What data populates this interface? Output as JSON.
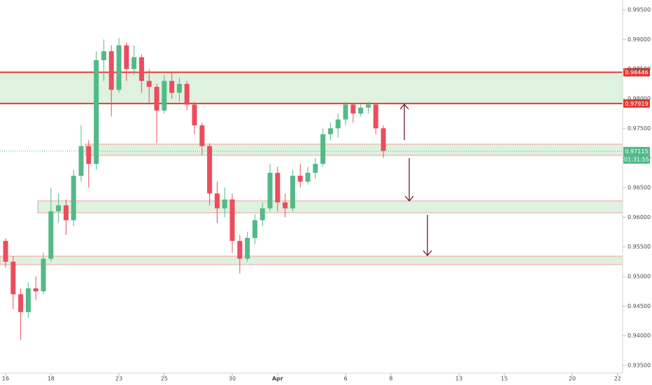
{
  "chart_data": {
    "type": "candlestick",
    "categories": [
      "16",
      null,
      null,
      null,
      null,
      null,
      "18",
      null,
      null,
      null,
      null,
      null,
      null,
      null,
      null,
      "23",
      null,
      null,
      null,
      null,
      null,
      "25",
      null,
      null,
      null,
      null,
      null,
      null,
      null,
      null,
      "30",
      null,
      null,
      null,
      null,
      null,
      "Apr",
      null,
      null,
      null,
      null,
      null,
      null,
      null,
      null,
      "6",
      null,
      null,
      null,
      null,
      null,
      "8",
      null,
      null,
      null,
      null,
      null,
      null,
      null,
      null,
      "13",
      null,
      null,
      null,
      null,
      null,
      "15",
      null,
      null,
      null,
      null,
      null,
      null,
      null,
      null,
      "20",
      null,
      null,
      null,
      null,
      null,
      "22"
    ],
    "open": [
      0.956,
      0.9525,
      0.947,
      0.944,
      0.948,
      0.9475,
      0.953,
      0.961,
      0.962,
      0.9595,
      0.967,
      0.972,
      0.969,
      0.9865,
      0.988,
      0.9815,
      0.989,
      0.985,
      0.987,
      0.983,
      0.982,
      0.978,
      0.983,
      0.981,
      0.9825,
      0.979,
      0.9755,
      0.972,
      0.964,
      0.9615,
      0.963,
      0.956,
      0.953,
      0.9565,
      0.9595,
      0.9615,
      0.9675,
      0.9625,
      0.9615,
      0.967,
      0.966,
      0.9675,
      0.969,
      0.974,
      0.975,
      0.9765,
      0.979,
      0.9775,
      0.9785,
      0.979,
      0.975,
      null,
      null,
      null,
      null,
      null,
      null,
      null,
      null,
      null,
      null,
      null,
      null,
      null,
      null,
      null,
      null,
      null,
      null,
      null,
      null,
      null,
      null,
      null,
      null,
      null,
      null,
      null,
      null,
      null,
      null,
      null
    ],
    "high": [
      0.9565,
      0.9535,
      0.948,
      0.949,
      0.95,
      0.954,
      0.965,
      0.964,
      0.963,
      0.968,
      0.9755,
      0.973,
      0.988,
      0.99,
      0.989,
      0.9902,
      0.9895,
      0.989,
      0.9875,
      0.985,
      0.9825,
      0.984,
      0.9845,
      0.9835,
      0.983,
      0.9795,
      0.976,
      0.9725,
      0.966,
      0.965,
      0.964,
      0.957,
      0.9575,
      0.9605,
      0.9625,
      0.969,
      0.9685,
      0.964,
      0.968,
      0.969,
      0.9685,
      0.97,
      0.975,
      0.976,
      0.9775,
      0.9795,
      0.9792,
      0.979,
      0.9795,
      0.9792,
      0.9755,
      null,
      null,
      null,
      null,
      null,
      null,
      null,
      null,
      null,
      null,
      null,
      null,
      null,
      null,
      null,
      null,
      null,
      null,
      null,
      null,
      null,
      null,
      null,
      null,
      null,
      null,
      null,
      null,
      null,
      null,
      null
    ],
    "low": [
      0.9515,
      0.9445,
      0.9393,
      0.943,
      0.946,
      0.947,
      0.9525,
      0.959,
      0.957,
      0.9585,
      0.966,
      0.965,
      0.968,
      0.983,
      0.977,
      0.981,
      0.983,
      0.984,
      0.981,
      0.979,
      0.9725,
      0.9775,
      0.98,
      0.9795,
      0.978,
      0.974,
      0.9705,
      0.962,
      0.959,
      0.96,
      0.954,
      0.9505,
      0.9525,
      0.9555,
      0.9585,
      0.961,
      0.961,
      0.96,
      0.961,
      0.965,
      0.9655,
      0.9665,
      0.9685,
      0.973,
      0.9735,
      0.9755,
      0.976,
      0.977,
      0.9775,
      0.974,
      0.97,
      null,
      null,
      null,
      null,
      null,
      null,
      null,
      null,
      null,
      null,
      null,
      null,
      null,
      null,
      null,
      null,
      null,
      null,
      null,
      null,
      null,
      null,
      null,
      null,
      null,
      null,
      null,
      null,
      null,
      null,
      null
    ],
    "close": [
      0.9525,
      0.947,
      0.944,
      0.948,
      0.9475,
      0.953,
      0.961,
      0.962,
      0.9595,
      0.967,
      0.972,
      0.969,
      0.9865,
      0.988,
      0.9815,
      0.989,
      0.985,
      0.987,
      0.983,
      0.982,
      0.978,
      0.983,
      0.981,
      0.9825,
      0.979,
      0.9755,
      0.972,
      0.964,
      0.9615,
      0.963,
      0.956,
      0.953,
      0.9565,
      0.9595,
      0.9615,
      0.9675,
      0.9625,
      0.9615,
      0.967,
      0.966,
      0.9675,
      0.969,
      0.974,
      0.975,
      0.9765,
      0.979,
      0.9775,
      0.9785,
      0.979,
      0.975,
      0.9712,
      null,
      null,
      null,
      null,
      null,
      null,
      null,
      null,
      null,
      null,
      null,
      null,
      null,
      null,
      null,
      null,
      null,
      null,
      null,
      null,
      null,
      null,
      null,
      null,
      null,
      null,
      null,
      null,
      null,
      null,
      null
    ],
    "up_color": "#53b987",
    "down_color": "#eb4d5c",
    "ylim": [
      0.935,
      0.995
    ],
    "yticks": [
      {
        "value": 0.935,
        "label": "0.93500"
      },
      {
        "value": 0.94,
        "label": "0.94000"
      },
      {
        "value": 0.945,
        "label": "0.94500"
      },
      {
        "value": 0.95,
        "label": "0.95000"
      },
      {
        "value": 0.955,
        "label": "0.95500"
      },
      {
        "value": 0.96,
        "label": "0.96000"
      },
      {
        "value": 0.965,
        "label": "0.96500"
      },
      {
        "value": 0.97,
        "label": "0.97000"
      },
      {
        "value": 0.975,
        "label": "0.97500"
      },
      {
        "value": 0.98,
        "label": "0.98000"
      },
      {
        "value": 0.985,
        "label": "0.98500"
      },
      {
        "value": 0.99,
        "label": "0.99000"
      },
      {
        "value": 0.995,
        "label": "0.99500"
      }
    ],
    "zones": [
      {
        "top": 0.98446,
        "bottom": 0.97919
      },
      {
        "top": 0.97233,
        "bottom": 0.97044
      },
      {
        "top": 0.96276,
        "bottom": 0.96075
      },
      {
        "top": 0.95343,
        "bottom": 0.95201
      }
    ],
    "levels": [
      0.98446,
      0.97919
    ],
    "last_price": 0.97115,
    "countdown": "01:31:55"
  }
}
